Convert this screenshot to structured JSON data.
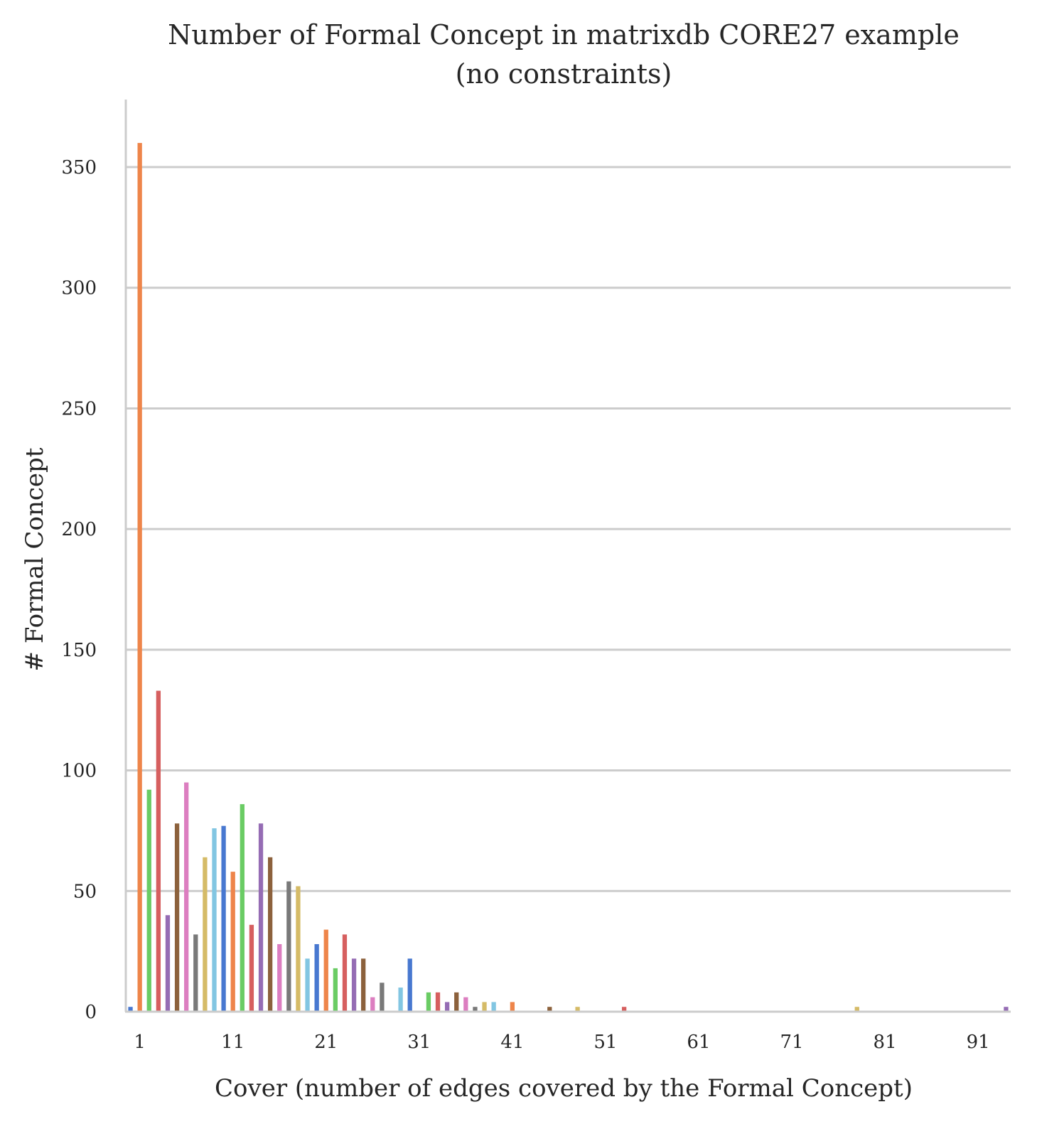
{
  "chart_data": {
    "type": "bar",
    "title": [
      "Number of Formal Concept in matrixdb CORE27 example",
      "(no constraints)"
    ],
    "xlabel": "Cover (number of edges covered by the Formal Concept)",
    "ylabel": "# Formal Concept",
    "ylim": [
      0,
      378
    ],
    "xlim": [
      0,
      95
    ],
    "yticks": [
      0,
      50,
      100,
      150,
      200,
      250,
      300,
      350
    ],
    "xticks": [
      1,
      11,
      21,
      31,
      41,
      51,
      61,
      71,
      81,
      91
    ],
    "grid": "horizontal",
    "legend": "none",
    "palette": [
      "#4878d0",
      "#ee854a",
      "#6acc64",
      "#d65f5f",
      "#956cb4",
      "#8c613c",
      "#dc7ec0",
      "#797979",
      "#d5bb67",
      "#82c6e2"
    ],
    "x": [
      0,
      1,
      2,
      3,
      4,
      5,
      6,
      7,
      8,
      9,
      10,
      11,
      12,
      13,
      14,
      15,
      16,
      17,
      18,
      19,
      20,
      21,
      22,
      23,
      24,
      25,
      26,
      27,
      28,
      29,
      30,
      31,
      32,
      33,
      34,
      35,
      36,
      37,
      38,
      39,
      40,
      41,
      42,
      43,
      44,
      45,
      46,
      47,
      48,
      49,
      50,
      51,
      52,
      53,
      54,
      55,
      56,
      57,
      58,
      59,
      60,
      61,
      62,
      63,
      64,
      65,
      66,
      67,
      68,
      69,
      70,
      71,
      72,
      73,
      74,
      75,
      76,
      77,
      78,
      79,
      80,
      81,
      82,
      83,
      84,
      85,
      86,
      87,
      88,
      89,
      90,
      91,
      92,
      93,
      94
    ],
    "values": [
      2,
      360,
      92,
      133,
      40,
      78,
      95,
      32,
      64,
      76,
      77,
      58,
      86,
      36,
      78,
      64,
      28,
      54,
      52,
      22,
      28,
      34,
      18,
      32,
      22,
      22,
      6,
      12,
      0,
      10,
      22,
      0,
      8,
      8,
      4,
      8,
      6,
      2,
      4,
      4,
      0,
      4,
      0,
      0,
      0,
      2,
      0,
      0,
      2,
      0,
      0,
      0,
      0,
      2,
      0,
      0,
      0,
      0,
      0,
      0,
      0,
      0,
      0,
      0,
      0,
      0,
      0,
      0,
      0,
      0,
      0,
      0,
      0,
      0,
      0,
      0,
      0,
      0,
      2,
      0,
      0,
      0,
      0,
      0,
      0,
      0,
      0,
      0,
      0,
      0,
      0,
      0,
      0,
      0,
      2
    ]
  }
}
